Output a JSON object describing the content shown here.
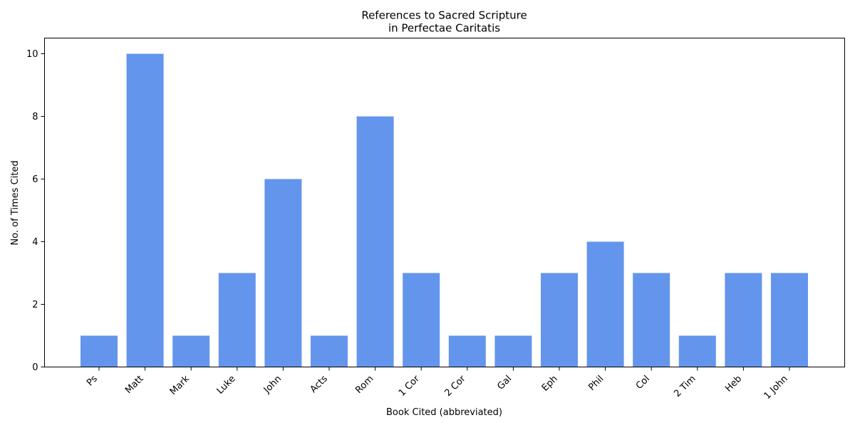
{
  "chart_data": {
    "type": "bar",
    "title_lines": [
      "References to Sacred Scripture",
      "in Perfectae Caritatis"
    ],
    "xlabel": "Book Cited (abbreviated)",
    "ylabel": "No. of Times Cited",
    "categories": [
      "Ps",
      "Matt",
      "Mark",
      "Luke",
      "John",
      "Acts",
      "Rom",
      "1 Cor",
      "2 Cor",
      "Gal",
      "Eph",
      "Phil",
      "Col",
      "2 Tim",
      "Heb",
      "1 John"
    ],
    "values": [
      1,
      10,
      1,
      3,
      6,
      1,
      8,
      3,
      1,
      1,
      3,
      4,
      3,
      1,
      3,
      3
    ],
    "yticks": [
      0,
      2,
      4,
      6,
      8,
      10
    ],
    "ylim": [
      0,
      10.5
    ],
    "bar_color": "#6495ED",
    "grid": false,
    "legend": "none"
  }
}
